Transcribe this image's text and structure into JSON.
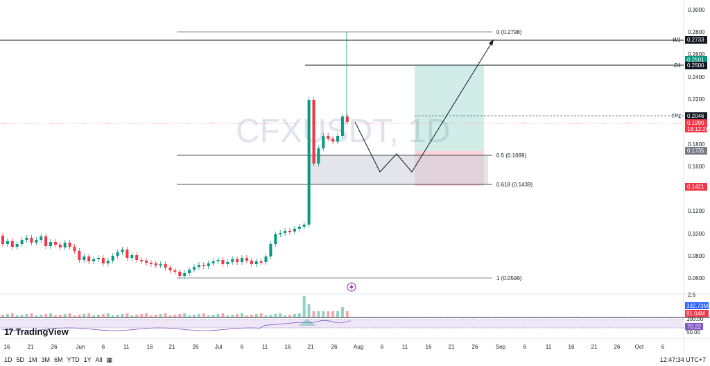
{
  "watermark": "CFXUSDT, 1D",
  "price_axis": {
    "ticks": [
      "0.3000",
      "0.2800",
      "0.2600",
      "0.2400",
      "0.2200",
      "0.1800",
      "0.1600",
      "0.1200",
      "0.1000",
      "0.0800",
      "0.0600"
    ],
    "tags": [
      {
        "name": "W1",
        "label": "W1",
        "value": "0.2733",
        "color": "#131722"
      },
      {
        "name": "price-0.2501",
        "label": "",
        "value": "0.2501",
        "color": "#089981"
      },
      {
        "name": "D1",
        "label": "D1",
        "value": "0.2500",
        "color": "#131722"
      },
      {
        "name": "TP1",
        "label": "TP1",
        "value": "0.2046",
        "color": "#131722"
      },
      {
        "name": "last-price",
        "label": "",
        "value": "0.1990",
        "color": "#f23645"
      },
      {
        "name": "countdown",
        "label": "",
        "value": "18:12:26",
        "color": "#f23645"
      },
      {
        "name": "price-0.1735",
        "label": "",
        "value": "0.1735",
        "color": "#787b86"
      },
      {
        "name": "price-0.1421",
        "label": "",
        "value": "0.1421",
        "color": "#f23645"
      }
    ],
    "volume_tags": [
      {
        "name": "volume-ma",
        "value": "332.73M",
        "color": "#2962ff"
      },
      {
        "name": "volume",
        "value": "91.04M",
        "color": "#f23645"
      }
    ],
    "rsi_ticks": [
      "100.00",
      "50.00"
    ],
    "rsi_tag": {
      "value": "70.22",
      "color": "#7e57c2"
    },
    "small_label": "2.6"
  },
  "fib_levels": [
    {
      "ratio": "0",
      "label": "0 (0.2798)"
    },
    {
      "ratio": "0.5",
      "label": "0.5 (0.1699)"
    },
    {
      "ratio": "0.618",
      "label": "0.618 (0.1439)"
    },
    {
      "ratio": "1",
      "label": "1 (0.0599)"
    }
  ],
  "time_axis": [
    "16",
    "21",
    "26",
    "Jun",
    "6",
    "11",
    "16",
    "21",
    "26",
    "Jul",
    "6",
    "11",
    "16",
    "21",
    "26",
    "Aug",
    "6",
    "11",
    "16",
    "21",
    "26",
    "Sep",
    "6",
    "11",
    "16",
    "21",
    "26",
    "Oct",
    "6"
  ],
  "logo_text": "TradingView",
  "bottom_bar": {
    "timeframes": [
      "1D",
      "5D",
      "1M",
      "3M",
      "6M",
      "YTD",
      "1Y",
      "All"
    ],
    "clock": "12:47:34 UTC+7"
  },
  "colors": {
    "up": "#089981",
    "down": "#f23645",
    "rsi": "#7e57c2",
    "target": "#089981",
    "stop": "#f23645"
  }
}
